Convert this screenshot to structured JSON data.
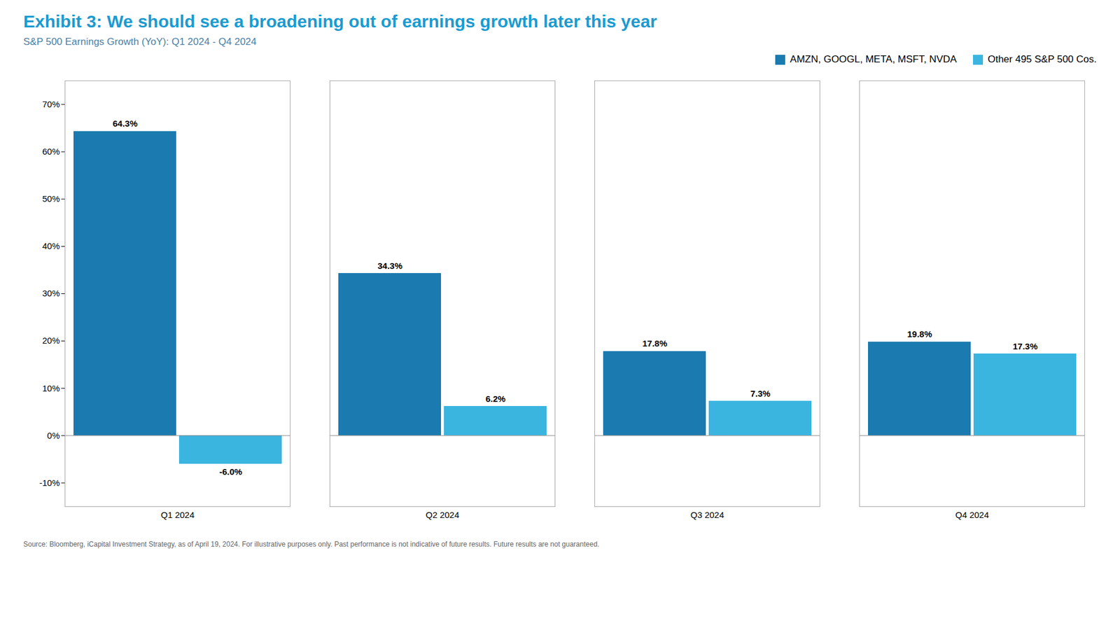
{
  "chart_data": {
    "type": "bar",
    "title": "Exhibit 3: We should see a broadening out of earnings growth later this year",
    "subtitle": "S&P 500 Earnings Growth (YoY): Q1 2024 - Q4 2024",
    "source": "Source: Bloomberg, iCapital Investment Strategy, as of April 19, 2024. For illustrative purposes only. Past performance is not indicative of future results. Future results are not guaranteed.",
    "categories": [
      "Q1 2024",
      "Q2 2024",
      "Q3 2024",
      "Q4 2024"
    ],
    "series": [
      {
        "name": "AMZN, GOOGL, META, MSFT, NVDA",
        "color": "#1B7AAF",
        "values": [
          64.3,
          34.3,
          17.8,
          19.8
        ],
        "value_labels": [
          "64.3%",
          "34.3%",
          "17.8%",
          "19.8%"
        ]
      },
      {
        "name": "Other 495 S&P 500 Cos.",
        "color": "#3AB5E0",
        "values": [
          -6.0,
          6.2,
          7.3,
          17.3
        ],
        "value_labels": [
          "-6.0%",
          "6.2%",
          "7.3%",
          "17.3%"
        ]
      }
    ],
    "ylim": [
      -15,
      75
    ],
    "yticks": [
      {
        "value": -10,
        "label": "-10%"
      },
      {
        "value": 0,
        "label": "0%"
      },
      {
        "value": 10,
        "label": "10%"
      },
      {
        "value": 20,
        "label": "20%"
      },
      {
        "value": 30,
        "label": "30%"
      },
      {
        "value": 40,
        "label": "40%"
      },
      {
        "value": 50,
        "label": "50%"
      },
      {
        "value": 60,
        "label": "60%"
      },
      {
        "value": 70,
        "label": "70%"
      }
    ],
    "data_labels": true,
    "grid": false,
    "legend": "top-right"
  }
}
